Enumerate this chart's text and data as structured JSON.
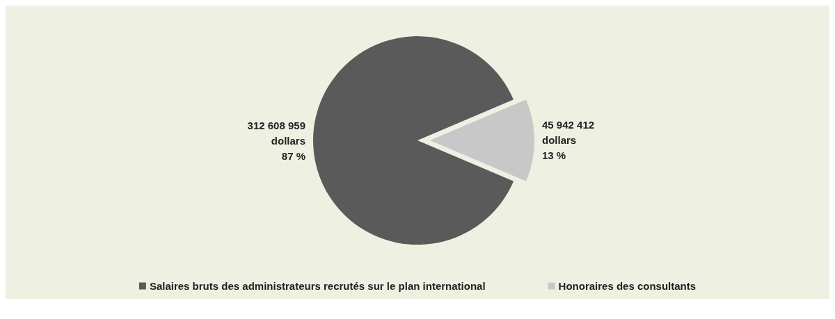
{
  "chart_data": {
    "type": "pie",
    "categories": [
      "Salaires bruts des administrateurs recrutés sur le plan international",
      "Honoraires des consultants"
    ],
    "values": [
      312608959,
      45942412
    ],
    "colors": [
      "#5a5a5a",
      "#c8c8c8"
    ],
    "value_labels": [
      "312 608 959\ndollars\n87 %",
      "45 942 412\ndollars\n13 %"
    ],
    "legend": "bottom"
  }
}
